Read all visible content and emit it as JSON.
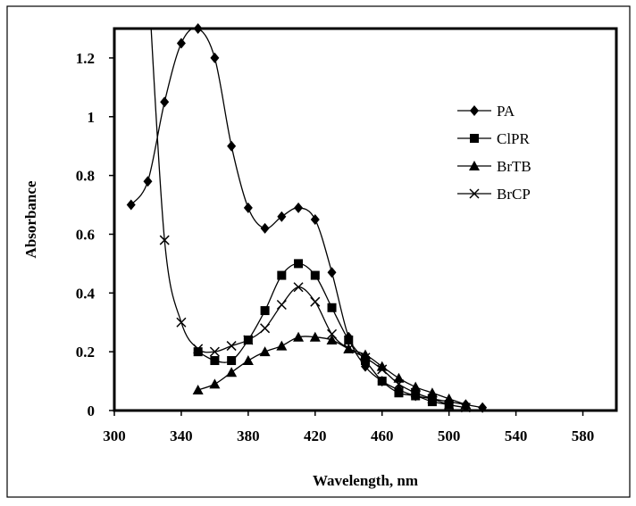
{
  "chart_data": {
    "type": "line",
    "title": "",
    "xlabel": "Wavelength, nm",
    "ylabel": "Absorbance",
    "xlim": [
      300,
      600
    ],
    "ylim": [
      0,
      1.3
    ],
    "xticks": [
      300,
      340,
      380,
      420,
      460,
      500,
      540,
      580
    ],
    "yticks": [
      0,
      0.2,
      0.4,
      0.6,
      0.8,
      1,
      1.2
    ],
    "ytick_labels": [
      "0",
      "0.2",
      "0.4",
      "0.6",
      "0.8",
      "1",
      "1.2"
    ],
    "grid": false,
    "legend_position": "top-right",
    "series": [
      {
        "name": "PA",
        "marker": "diamond",
        "x": [
          310,
          320,
          330,
          340,
          350,
          360,
          370,
          380,
          390,
          400,
          410,
          420,
          430,
          440,
          450,
          460,
          470,
          480,
          490,
          500,
          510,
          520
        ],
        "y": [
          0.7,
          0.78,
          1.05,
          1.25,
          1.3,
          1.2,
          0.9,
          0.69,
          0.62,
          0.66,
          0.69,
          0.65,
          0.47,
          0.25,
          0.15,
          0.1,
          0.07,
          0.05,
          0.04,
          0.03,
          0.02,
          0.01
        ]
      },
      {
        "name": "ClPR",
        "marker": "square",
        "x": [
          350,
          360,
          370,
          380,
          390,
          400,
          410,
          420,
          430,
          440,
          450,
          460,
          470,
          480,
          490,
          500
        ],
        "y": [
          0.2,
          0.17,
          0.17,
          0.24,
          0.34,
          0.46,
          0.5,
          0.46,
          0.35,
          0.24,
          0.17,
          0.1,
          0.06,
          0.05,
          0.03,
          0.02
        ]
      },
      {
        "name": "BrTB",
        "marker": "triangle",
        "x": [
          350,
          360,
          370,
          380,
          390,
          400,
          410,
          420,
          430,
          440,
          450,
          460,
          470,
          480,
          490,
          500,
          510
        ],
        "y": [
          0.07,
          0.09,
          0.13,
          0.17,
          0.2,
          0.22,
          0.25,
          0.25,
          0.24,
          0.21,
          0.19,
          0.15,
          0.11,
          0.08,
          0.06,
          0.04,
          0.02
        ]
      },
      {
        "name": "BrCP",
        "marker": "x",
        "x": [
          320,
          330,
          340,
          350,
          360,
          370,
          380,
          390,
          400,
          410,
          420,
          430,
          440,
          450,
          460,
          470,
          480,
          490,
          500,
          510
        ],
        "y": [
          1.5,
          0.58,
          0.3,
          0.21,
          0.2,
          0.22,
          0.24,
          0.28,
          0.36,
          0.42,
          0.37,
          0.26,
          0.21,
          0.18,
          0.14,
          0.09,
          0.06,
          0.04,
          0.02,
          0.01
        ]
      }
    ]
  }
}
